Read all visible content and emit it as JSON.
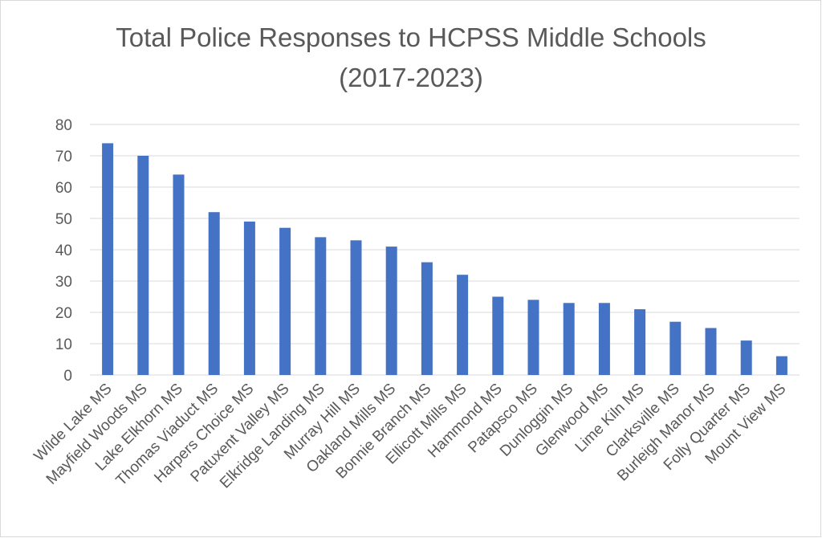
{
  "chart_data": {
    "type": "bar",
    "title_lines": [
      "Total Police Responses to HCPSS Middle Schools",
      "(2017-2023)"
    ],
    "xlabel": "",
    "ylabel": "",
    "ylim": [
      0,
      80
    ],
    "yticks": [
      0,
      10,
      20,
      30,
      40,
      50,
      60,
      70,
      80
    ],
    "grid": true,
    "legend": "none",
    "bar_color": "#4472c4",
    "categories": [
      "Wilde Lake MS",
      "Mayfield Woods MS",
      "Lake Elkhorn MS",
      "Thomas Viaduct MS",
      "Harpers Choice MS",
      "Patuxent Valley MS",
      "Elkridge Landing MS",
      "Murray Hill MS",
      "Oakland Mills MS",
      "Bonnie Branch MS",
      "Ellicott Mills MS",
      "Hammond MS",
      "Patapsco MS",
      "Dunloggin MS",
      "Glenwood MS",
      "Lime Kiln MS",
      "Clarksville MS",
      "Burleigh Manor MS",
      "Folly Quarter MS",
      "Mount View MS"
    ],
    "values": [
      74,
      70,
      64,
      52,
      49,
      47,
      44,
      43,
      41,
      36,
      32,
      25,
      24,
      23,
      23,
      21,
      17,
      15,
      11,
      6
    ]
  }
}
